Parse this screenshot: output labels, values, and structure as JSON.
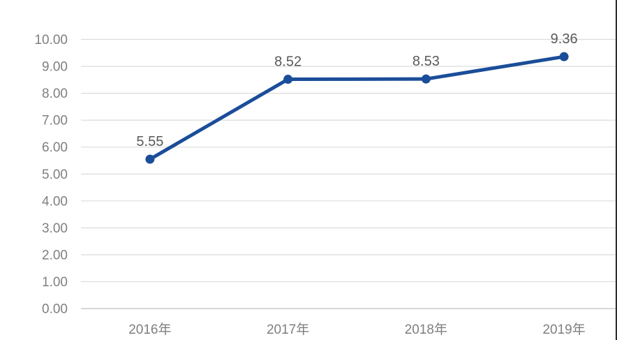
{
  "chart_data": {
    "type": "line",
    "title": "",
    "xlabel": "",
    "ylabel": "",
    "categories": [
      "2016年",
      "2017年",
      "2018年",
      "2019年"
    ],
    "series": [
      {
        "name": "value",
        "values": [
          5.55,
          8.52,
          8.53,
          9.36
        ]
      }
    ],
    "data_labels": [
      "5.55",
      "8.52",
      "8.53",
      "9.36"
    ],
    "y_ticks": [
      "10.00",
      "9.00",
      "8.00",
      "7.00",
      "6.00",
      "5.00",
      "4.00",
      "3.00",
      "2.00",
      "1.00",
      "0.00"
    ],
    "ylim": [
      0,
      10
    ],
    "y_step": 1,
    "grid": true,
    "legend_position": "none",
    "colors": {
      "line": "#1B4D99",
      "marker": "#1B4D99",
      "grid": "#DBDBDB",
      "baseline": "#C9C9C9",
      "axis_text": "#7F7F7F",
      "data_label_text": "#595959",
      "background": "#FFFFFF",
      "right_edge_strip": "#2B2B2B"
    }
  }
}
